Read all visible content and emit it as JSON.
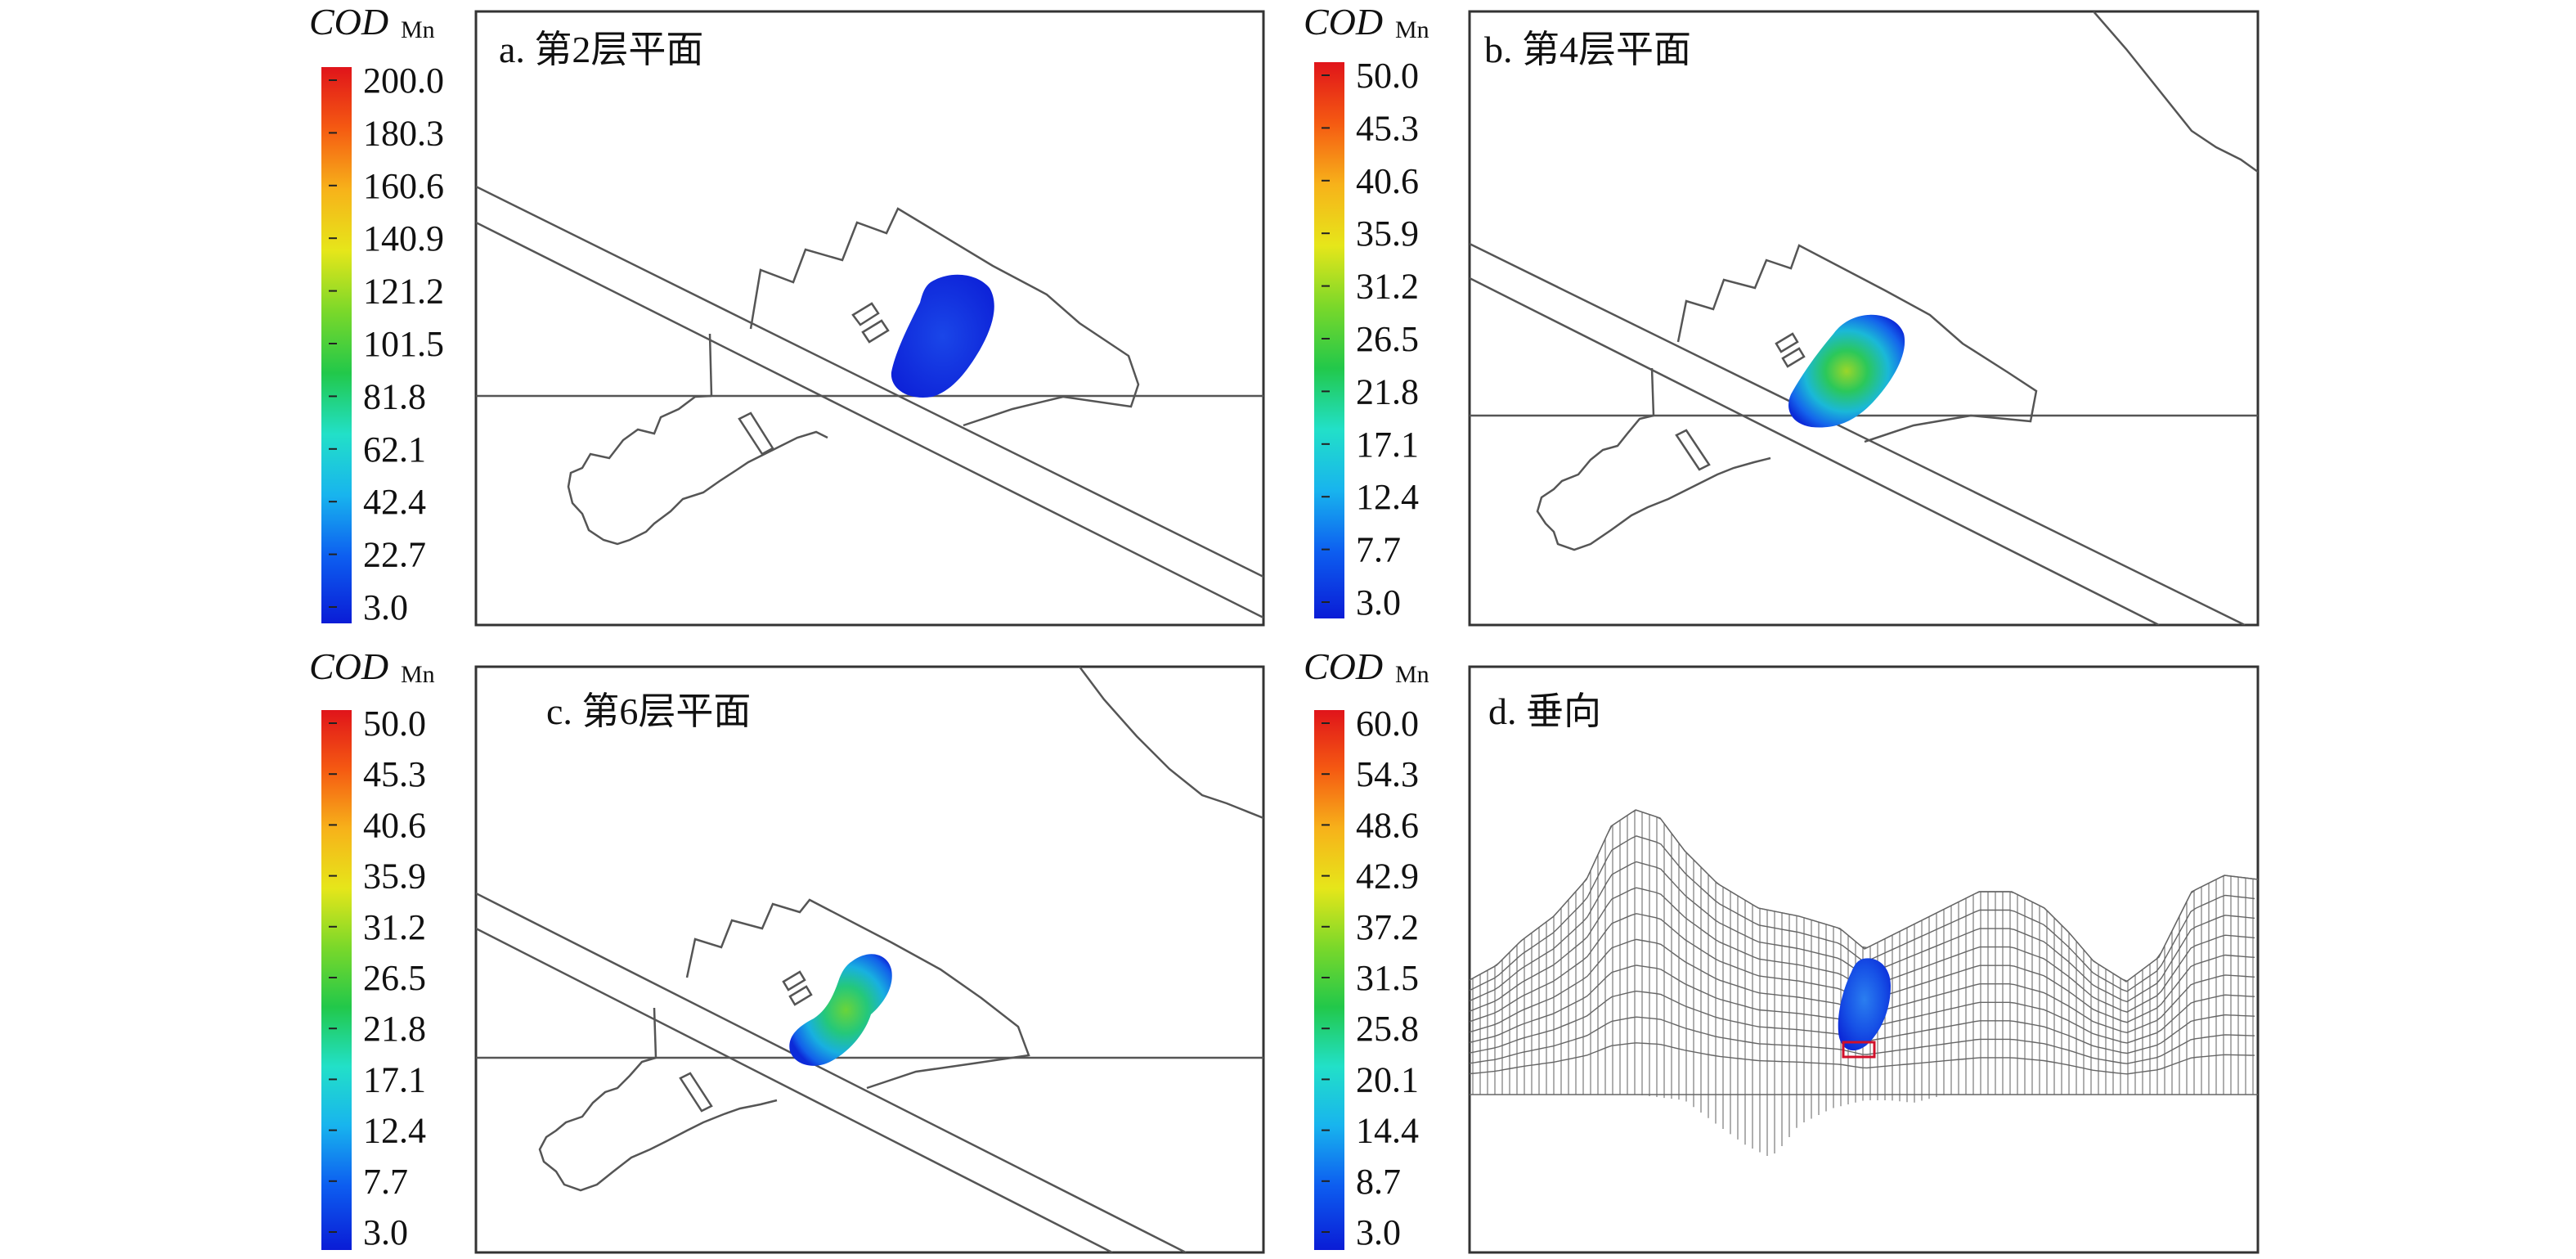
{
  "colors": {
    "frame": "#333333",
    "outline": "#555555",
    "scale": [
      "#0a1cd6",
      "#0d5ef0",
      "#18b4ee",
      "#22e0c8",
      "#22c84a",
      "#7ad82a",
      "#e6e61a",
      "#f7b21a",
      "#f55a12",
      "#e0141a"
    ],
    "marker": "#d0102a"
  },
  "panels": [
    {
      "id": "a",
      "title": "a. 第2层平面",
      "legend": {
        "quantity": "COD",
        "subscript": "Mn",
        "ticks": [
          "200.0",
          "180.3",
          "160.6",
          "140.9",
          "121.2",
          "101.5",
          "81.8",
          "62.1",
          "42.4",
          "22.7",
          "3.0"
        ]
      }
    },
    {
      "id": "b",
      "title": "b. 第4层平面",
      "legend": {
        "quantity": "COD",
        "subscript": "Mn",
        "ticks": [
          "50.0",
          "45.3",
          "40.6",
          "35.9",
          "31.2",
          "26.5",
          "21.8",
          "17.1",
          "12.4",
          "7.7",
          "3.0"
        ]
      }
    },
    {
      "id": "c",
      "title": "c. 第6层平面",
      "legend": {
        "quantity": "COD",
        "subscript": "Mn",
        "ticks": [
          "50.0",
          "45.3",
          "40.6",
          "35.9",
          "31.2",
          "26.5",
          "21.8",
          "17.1",
          "12.4",
          "7.7",
          "3.0"
        ]
      }
    },
    {
      "id": "d",
      "title": "d. 垂向",
      "legend": {
        "quantity": "COD",
        "subscript": "Mn",
        "ticks": [
          "60.0",
          "54.3",
          "48.6",
          "42.9",
          "37.2",
          "31.5",
          "25.8",
          "20.1",
          "14.4",
          "8.7",
          "3.0"
        ]
      }
    }
  ]
}
